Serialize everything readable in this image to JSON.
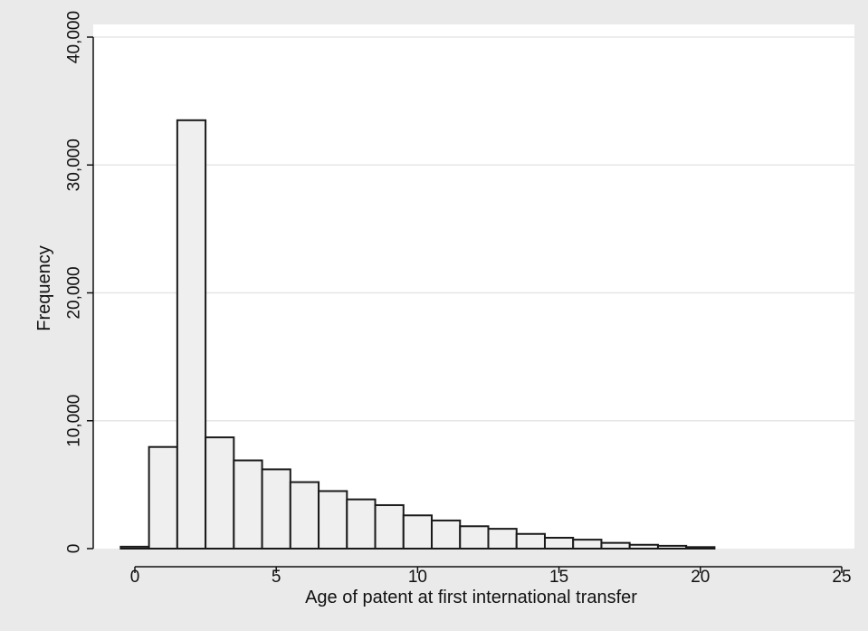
{
  "chart_data": {
    "type": "bar",
    "xlabel": "Age of patent at first international transfer",
    "ylabel": "Frequency",
    "xlim": [
      -1.5,
      25.5
    ],
    "ylim": [
      0,
      40000
    ],
    "x_ticks": [
      0,
      5,
      10,
      15,
      20,
      25
    ],
    "x_tick_labels": [
      "0",
      "5",
      "10",
      "15",
      "20",
      "25"
    ],
    "y_ticks": [
      0,
      10000,
      20000,
      30000,
      40000
    ],
    "y_tick_labels": [
      "0",
      "10,000",
      "20,000",
      "30,000",
      "40,000"
    ],
    "grid": true,
    "bin_width": 1,
    "bins": [
      {
        "x": 0,
        "value": 150
      },
      {
        "x": 1,
        "value": 7950
      },
      {
        "x": 2,
        "value": 33500
      },
      {
        "x": 3,
        "value": 8700
      },
      {
        "x": 4,
        "value": 6900
      },
      {
        "x": 5,
        "value": 6200
      },
      {
        "x": 6,
        "value": 5200
      },
      {
        "x": 7,
        "value": 4500
      },
      {
        "x": 8,
        "value": 3850
      },
      {
        "x": 9,
        "value": 3400
      },
      {
        "x": 10,
        "value": 2600
      },
      {
        "x": 11,
        "value": 2200
      },
      {
        "x": 12,
        "value": 1750
      },
      {
        "x": 13,
        "value": 1550
      },
      {
        "x": 14,
        "value": 1150
      },
      {
        "x": 15,
        "value": 850
      },
      {
        "x": 16,
        "value": 700
      },
      {
        "x": 17,
        "value": 450
      },
      {
        "x": 18,
        "value": 300
      },
      {
        "x": 19,
        "value": 220
      },
      {
        "x": 20,
        "value": 120
      }
    ],
    "colors": {
      "bar_fill": "#efefef",
      "bar_stroke": "#1a1a1a",
      "plot_background": "#ffffff",
      "outer_background": "#eaeaea",
      "grid": "#e6e6e6"
    }
  }
}
